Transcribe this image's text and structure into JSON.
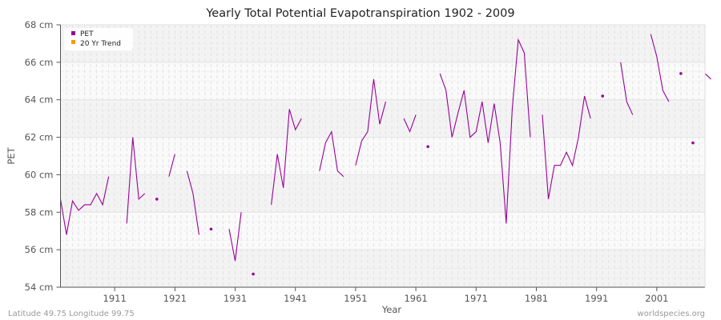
{
  "chart_data": {
    "type": "line",
    "title": "Yearly Total Potential Evapotranspiration 1902 - 2009",
    "xlabel": "Year",
    "ylabel": "PET",
    "y_unit": "cm",
    "xlim": [
      1902,
      2009
    ],
    "ylim": [
      54,
      68
    ],
    "y_ticks": [
      54,
      56,
      58,
      60,
      62,
      64,
      66,
      68
    ],
    "y_tick_labels": [
      "54 cm",
      "56 cm",
      "58 cm",
      "60 cm",
      "62 cm",
      "64 cm",
      "66 cm",
      "68 cm"
    ],
    "x_ticks": [
      1911,
      1921,
      1931,
      1941,
      1951,
      1961,
      1971,
      1981,
      1991,
      2001
    ],
    "x_tick_labels": [
      "1911",
      "1921",
      "1931",
      "1941",
      "1951",
      "1961",
      "1971",
      "1981",
      "1991",
      "2001"
    ],
    "grid": true,
    "legend_position": "top-left",
    "legend": [
      {
        "label": "PET",
        "color": "#990099"
      },
      {
        "label": "20 Yr Trend",
        "color": "#ff9900"
      }
    ],
    "series": [
      {
        "name": "PET",
        "color": "#990099",
        "x_start": 1902,
        "values": [
          58.7,
          56.8,
          58.6,
          58.1,
          58.4,
          58.4,
          59.0,
          58.4,
          59.9,
          null,
          null,
          57.4,
          62.0,
          58.7,
          59.0,
          null,
          58.7,
          null,
          59.9,
          61.1,
          null,
          60.2,
          59.0,
          56.8,
          null,
          57.1,
          null,
          null,
          57.1,
          55.4,
          58.0,
          null,
          54.7,
          null,
          null,
          58.4,
          61.1,
          59.3,
          63.5,
          62.4,
          63.0,
          null,
          null,
          60.2,
          61.7,
          62.3,
          60.2,
          59.9,
          null,
          60.5,
          61.8,
          62.3,
          65.1,
          62.7,
          63.9,
          null,
          null,
          63.0,
          62.3,
          63.2,
          null,
          61.5,
          null,
          65.4,
          64.5,
          62.0,
          63.3,
          64.5,
          62.0,
          62.3,
          63.9,
          61.7,
          63.8,
          61.7,
          57.4,
          63.5,
          67.2,
          66.5,
          62.0,
          null,
          63.2,
          58.7,
          60.5,
          60.5,
          61.2,
          60.5,
          62.0,
          64.2,
          63.0,
          null,
          64.2,
          null,
          null,
          66.0,
          63.9,
          63.2,
          null,
          null,
          67.5,
          66.3,
          64.5,
          63.9,
          null,
          65.4,
          null,
          61.7,
          null,
          65.4,
          65.1
        ]
      },
      {
        "name": "20 Yr Trend",
        "color": "#ff9900",
        "values": []
      }
    ]
  },
  "footer": {
    "left": "Latitude 49.75 Longitude 99.75",
    "right": "worldspecies.org"
  }
}
